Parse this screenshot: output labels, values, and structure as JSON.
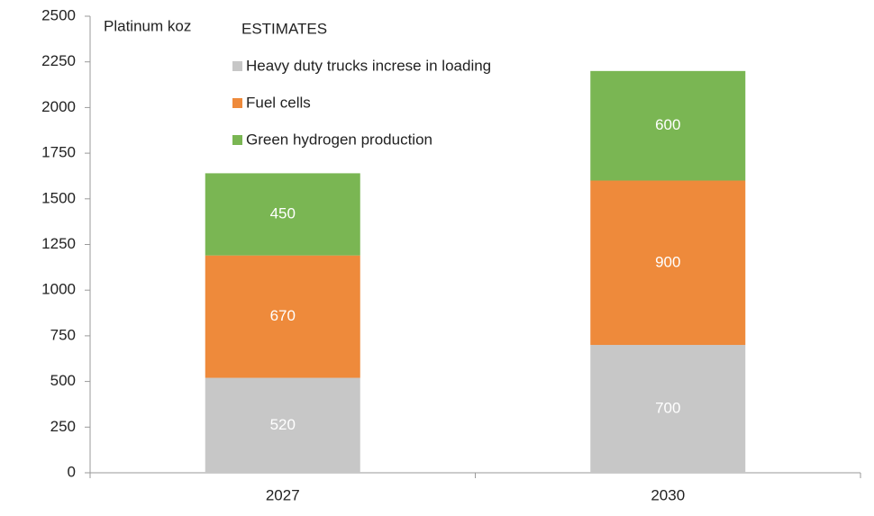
{
  "chart_data": {
    "type": "stacked_bar",
    "ylabel": "Platinum koz",
    "legend_title": "ESTIMATES",
    "categories": [
      "2027",
      "2030"
    ],
    "series": [
      {
        "name": "Heavy duty trucks increse in loading",
        "color": "#c7c7c7",
        "values": [
          520,
          700
        ]
      },
      {
        "name": "Fuel cells",
        "color": "#ee8a3b",
        "values": [
          670,
          900
        ]
      },
      {
        "name": "Green hydrogen production",
        "color": "#7ab653",
        "values": [
          450,
          600
        ]
      }
    ],
    "ylim": [
      0,
      2500
    ],
    "yticks": [
      0,
      250,
      500,
      750,
      1000,
      1250,
      1500,
      1750,
      2000,
      2250,
      2500
    ],
    "legend": "top-left"
  }
}
